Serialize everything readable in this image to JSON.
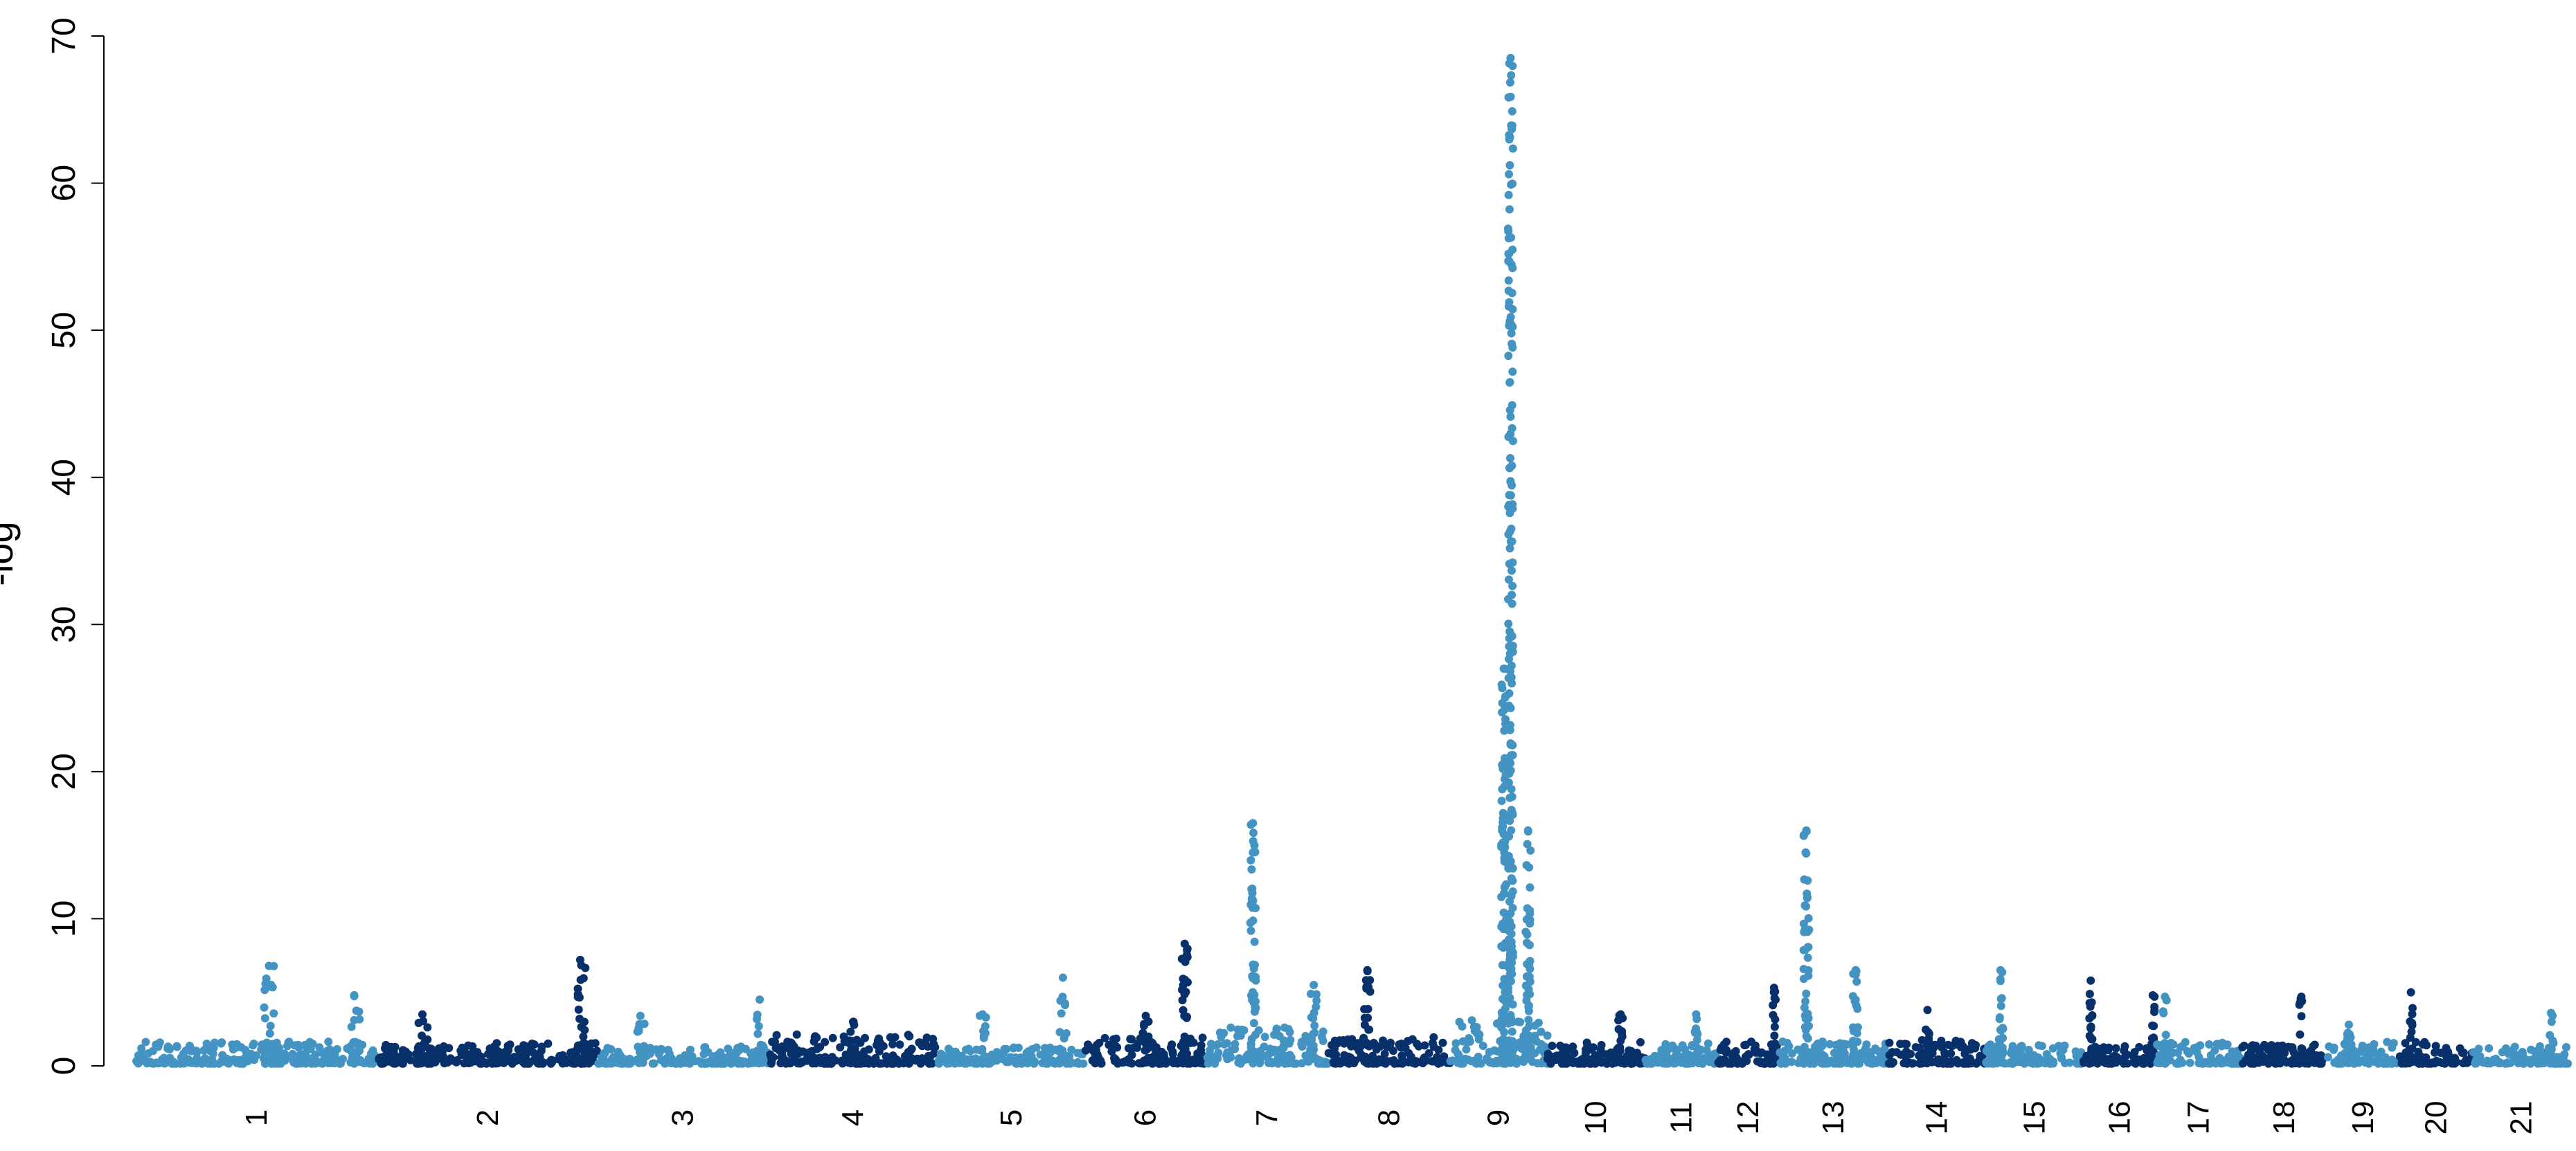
{
  "chart_data": {
    "type": "scatter",
    "subtype": "manhattan",
    "title": "",
    "xlabel": "",
    "ylabel": "-log",
    "ylim": [
      0,
      70
    ],
    "yticks": [
      0,
      10,
      20,
      30,
      40,
      50,
      60,
      70
    ],
    "grid": false,
    "legend": "none",
    "colors": {
      "odd": "#4393c3",
      "even": "#08306b"
    },
    "chromosomes": [
      {
        "label": "1",
        "span": [
          0.0,
          0.1
        ],
        "color": "odd",
        "base": 1.5,
        "peaks": [
          {
            "pos": 0.55,
            "max": 6.8
          },
          {
            "pos": 0.9,
            "max": 4.8
          }
        ]
      },
      {
        "label": "2",
        "span": [
          0.1,
          0.19
        ],
        "color": "even",
        "base": 1.5,
        "peaks": [
          {
            "pos": 0.92,
            "max": 7.2
          },
          {
            "pos": 0.2,
            "max": 3.5
          }
        ]
      },
      {
        "label": "3",
        "span": [
          0.19,
          0.26
        ],
        "color": "odd",
        "base": 1.2,
        "peaks": [
          {
            "pos": 0.95,
            "max": 4.5
          },
          {
            "pos": 0.25,
            "max": 3.4
          }
        ]
      },
      {
        "label": "4",
        "span": [
          0.26,
          0.33
        ],
        "color": "even",
        "base": 2.0,
        "peaks": [
          {
            "pos": 0.5,
            "max": 3.0
          }
        ]
      },
      {
        "label": "5",
        "span": [
          0.33,
          0.39
        ],
        "color": "odd",
        "base": 1.1,
        "peaks": [
          {
            "pos": 0.85,
            "max": 6.0
          },
          {
            "pos": 0.3,
            "max": 3.5
          }
        ]
      },
      {
        "label": "6",
        "span": [
          0.39,
          0.44
        ],
        "color": "even",
        "base": 1.8,
        "peaks": [
          {
            "pos": 0.82,
            "max": 8.3
          },
          {
            "pos": 0.5,
            "max": 3.4
          }
        ]
      },
      {
        "label": "7",
        "span": [
          0.44,
          0.49
        ],
        "color": "odd",
        "base": 2.5,
        "peaks": [
          {
            "pos": 0.38,
            "max": 16.5
          },
          {
            "pos": 0.88,
            "max": 5.5
          }
        ]
      },
      {
        "label": "8",
        "span": [
          0.49,
          0.54
        ],
        "color": "even",
        "base": 1.8,
        "peaks": [
          {
            "pos": 0.32,
            "max": 6.5
          }
        ]
      },
      {
        "label": "9",
        "span": [
          0.54,
          0.58
        ],
        "color": "odd",
        "base": 3.0,
        "peaks": [
          {
            "pos": 0.62,
            "max": 68.5
          },
          {
            "pos": 0.55,
            "max": 27.0
          },
          {
            "pos": 0.8,
            "max": 16.0
          }
        ]
      },
      {
        "label": "10",
        "span": [
          0.58,
          0.62
        ],
        "color": "even",
        "base": 1.5,
        "peaks": [
          {
            "pos": 0.75,
            "max": 3.5
          }
        ]
      },
      {
        "label": "11",
        "span": [
          0.62,
          0.65
        ],
        "color": "odd",
        "base": 1.4,
        "peaks": [
          {
            "pos": 0.7,
            "max": 3.5
          }
        ]
      },
      {
        "label": "12",
        "span": [
          0.65,
          0.675
        ],
        "color": "even",
        "base": 1.5,
        "peaks": [
          {
            "pos": 0.92,
            "max": 5.3
          }
        ]
      },
      {
        "label": "13",
        "span": [
          0.675,
          0.72
        ],
        "color": "odd",
        "base": 1.5,
        "peaks": [
          {
            "pos": 0.25,
            "max": 16.0
          },
          {
            "pos": 0.7,
            "max": 6.5
          }
        ]
      },
      {
        "label": "14",
        "span": [
          0.72,
          0.76
        ],
        "color": "even",
        "base": 1.6,
        "peaks": [
          {
            "pos": 0.4,
            "max": 3.8
          }
        ]
      },
      {
        "label": "15",
        "span": [
          0.76,
          0.8
        ],
        "color": "odd",
        "base": 1.3,
        "peaks": [
          {
            "pos": 0.15,
            "max": 6.5
          }
        ]
      },
      {
        "label": "16",
        "span": [
          0.8,
          0.83
        ],
        "color": "even",
        "base": 1.2,
        "peaks": [
          {
            "pos": 0.1,
            "max": 5.8
          },
          {
            "pos": 0.95,
            "max": 4.8
          }
        ]
      },
      {
        "label": "17",
        "span": [
          0.83,
          0.865
        ],
        "color": "odd",
        "base": 1.5,
        "peaks": [
          {
            "pos": 0.1,
            "max": 4.7
          }
        ]
      },
      {
        "label": "18",
        "span": [
          0.865,
          0.9
        ],
        "color": "even",
        "base": 1.3,
        "peaks": [
          {
            "pos": 0.7,
            "max": 4.7
          }
        ]
      },
      {
        "label": "19",
        "span": [
          0.9,
          0.93
        ],
        "color": "odd",
        "base": 1.5,
        "peaks": [
          {
            "pos": 0.3,
            "max": 2.8
          }
        ]
      },
      {
        "label": "20",
        "span": [
          0.93,
          0.96
        ],
        "color": "even",
        "base": 1.5,
        "peaks": [
          {
            "pos": 0.15,
            "max": 5.0
          }
        ]
      },
      {
        "label": "21",
        "span": [
          0.96,
          1.0
        ],
        "color": "odd",
        "base": 1.2,
        "peaks": [
          {
            "pos": 0.8,
            "max": 3.6
          }
        ]
      }
    ]
  }
}
